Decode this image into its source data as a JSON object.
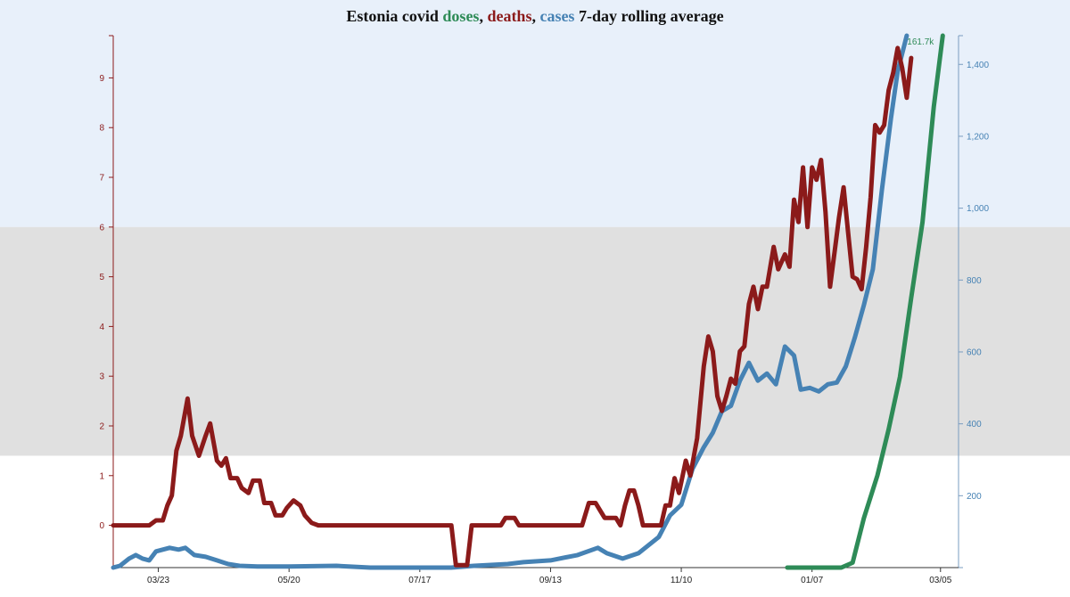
{
  "title": {
    "prefix": "Estonia covid ",
    "doses": "doses",
    "sep1": ", ",
    "deaths": "deaths",
    "sep2": ", ",
    "cases": "cases",
    "suffix": " 7-day rolling average"
  },
  "colors": {
    "doses": "#2e8b57",
    "deaths": "#8b1a1a",
    "cases": "#4682b4",
    "band_top": "#e8f0fa",
    "band_mid": "#e0e0e0",
    "axis_left": "#8b1a1a",
    "axis_right": "#4682b4",
    "axis_bottom": "#333333"
  },
  "chart_data": {
    "type": "line",
    "title": "Estonia covid doses, deaths, cases 7-day rolling average",
    "x_axis": {
      "type": "date",
      "range": [
        "2020-03-03",
        "2021-03-13"
      ],
      "ticks": [
        {
          "date": "2020-03-23",
          "label": "03/23"
        },
        {
          "date": "2020-05-20",
          "label": "05/20"
        },
        {
          "date": "2020-07-17",
          "label": "07/17"
        },
        {
          "date": "2020-09-13",
          "label": "09/13"
        },
        {
          "date": "2020-11-10",
          "label": "11/10"
        },
        {
          "date": "2021-01-07",
          "label": "01/07"
        },
        {
          "date": "2021-03-05",
          "label": "03/05"
        }
      ]
    },
    "y_left": {
      "series": "deaths",
      "range": [
        -0.85,
        9.85
      ],
      "ticks": [
        0,
        1,
        2,
        3,
        4,
        5,
        6,
        7,
        8,
        9
      ]
    },
    "y_right": {
      "series": "cases",
      "range": [
        0,
        1480
      ],
      "ticks": [
        200,
        400,
        600,
        800,
        1000,
        1200,
        1400
      ],
      "tick_labels": [
        "200",
        "400",
        "600",
        "800",
        "1,000",
        "1,200",
        "1,400"
      ]
    },
    "doses_scale": {
      "range": [
        0,
        161700
      ],
      "annotation": "161.7k"
    },
    "background_bands": [
      {
        "from": 6,
        "to": 9.85,
        "axis": "left",
        "color": "band_top"
      },
      {
        "from": 1.4,
        "to": 6,
        "axis": "left",
        "color": "band_mid"
      }
    ],
    "series": [
      {
        "name": "deaths",
        "axis": "left",
        "points": [
          [
            "2020-03-03",
            0
          ],
          [
            "2020-03-19",
            0
          ],
          [
            "2020-03-22",
            0.1
          ],
          [
            "2020-03-25",
            0.1
          ],
          [
            "2020-03-27",
            0.4
          ],
          [
            "2020-03-29",
            0.6
          ],
          [
            "2020-03-31",
            1.5
          ],
          [
            "2020-04-02",
            1.8
          ],
          [
            "2020-04-05",
            2.55
          ],
          [
            "2020-04-07",
            1.8
          ],
          [
            "2020-04-10",
            1.4
          ],
          [
            "2020-04-13",
            1.8
          ],
          [
            "2020-04-15",
            2.05
          ],
          [
            "2020-04-18",
            1.3
          ],
          [
            "2020-04-20",
            1.2
          ],
          [
            "2020-04-22",
            1.35
          ],
          [
            "2020-04-24",
            0.95
          ],
          [
            "2020-04-27",
            0.95
          ],
          [
            "2020-04-29",
            0.75
          ],
          [
            "2020-05-02",
            0.65
          ],
          [
            "2020-05-04",
            0.9
          ],
          [
            "2020-05-07",
            0.9
          ],
          [
            "2020-05-09",
            0.45
          ],
          [
            "2020-05-12",
            0.45
          ],
          [
            "2020-05-14",
            0.2
          ],
          [
            "2020-05-17",
            0.2
          ],
          [
            "2020-05-19",
            0.35
          ],
          [
            "2020-05-22",
            0.5
          ],
          [
            "2020-05-25",
            0.4
          ],
          [
            "2020-05-27",
            0.2
          ],
          [
            "2020-05-30",
            0.05
          ],
          [
            "2020-06-02",
            0
          ],
          [
            "2020-07-31",
            0
          ],
          [
            "2020-08-02",
            -0.8
          ],
          [
            "2020-08-07",
            -0.8
          ],
          [
            "2020-08-09",
            0
          ],
          [
            "2020-08-22",
            0
          ],
          [
            "2020-08-24",
            0.15
          ],
          [
            "2020-08-28",
            0.15
          ],
          [
            "2020-08-30",
            0
          ],
          [
            "2020-09-27",
            0
          ],
          [
            "2020-09-30",
            0.45
          ],
          [
            "2020-10-03",
            0.45
          ],
          [
            "2020-10-05",
            0.3
          ],
          [
            "2020-10-07",
            0.15
          ],
          [
            "2020-10-12",
            0.15
          ],
          [
            "2020-10-14",
            0
          ],
          [
            "2020-10-16",
            0.4
          ],
          [
            "2020-10-18",
            0.7
          ],
          [
            "2020-10-20",
            0.7
          ],
          [
            "2020-10-22",
            0.4
          ],
          [
            "2020-10-24",
            0
          ],
          [
            "2020-11-01",
            0
          ],
          [
            "2020-11-03",
            0.4
          ],
          [
            "2020-11-05",
            0.4
          ],
          [
            "2020-11-07",
            0.95
          ],
          [
            "2020-11-09",
            0.65
          ],
          [
            "2020-11-12",
            1.3
          ],
          [
            "2020-11-14",
            1.0
          ],
          [
            "2020-11-17",
            1.75
          ],
          [
            "2020-11-20",
            3.2
          ],
          [
            "2020-11-22",
            3.8
          ],
          [
            "2020-11-24",
            3.5
          ],
          [
            "2020-11-26",
            2.6
          ],
          [
            "2020-11-28",
            2.3
          ],
          [
            "2020-11-30",
            2.6
          ],
          [
            "2020-12-02",
            2.95
          ],
          [
            "2020-12-04",
            2.85
          ],
          [
            "2020-12-06",
            3.5
          ],
          [
            "2020-12-08",
            3.6
          ],
          [
            "2020-12-10",
            4.45
          ],
          [
            "2020-12-12",
            4.8
          ],
          [
            "2020-12-14",
            4.35
          ],
          [
            "2020-12-16",
            4.8
          ],
          [
            "2020-12-18",
            4.8
          ],
          [
            "2020-12-21",
            5.6
          ],
          [
            "2020-12-23",
            5.15
          ],
          [
            "2020-12-26",
            5.45
          ],
          [
            "2020-12-28",
            5.2
          ],
          [
            "2020-12-30",
            6.55
          ],
          [
            "2021-01-01",
            6.1
          ],
          [
            "2021-01-03",
            7.2
          ],
          [
            "2021-01-05",
            6.0
          ],
          [
            "2021-01-07",
            7.2
          ],
          [
            "2021-01-09",
            6.95
          ],
          [
            "2021-01-11",
            7.35
          ],
          [
            "2021-01-13",
            6.3
          ],
          [
            "2021-01-15",
            4.8
          ],
          [
            "2021-01-17",
            5.5
          ],
          [
            "2021-01-19",
            6.2
          ],
          [
            "2021-01-21",
            6.8
          ],
          [
            "2021-01-23",
            5.9
          ],
          [
            "2021-01-25",
            5.0
          ],
          [
            "2021-01-27",
            4.95
          ],
          [
            "2021-01-29",
            4.75
          ],
          [
            "2021-01-31",
            5.6
          ],
          [
            "2021-02-02",
            6.6
          ],
          [
            "2021-02-04",
            8.05
          ],
          [
            "2021-02-06",
            7.9
          ],
          [
            "2021-02-08",
            8.05
          ],
          [
            "2021-02-10",
            8.75
          ],
          [
            "2021-02-12",
            9.1
          ],
          [
            "2021-02-14",
            9.6
          ],
          [
            "2021-02-16",
            9.2
          ],
          [
            "2021-02-18",
            8.6
          ],
          [
            "2021-02-20",
            9.4
          ]
        ]
      },
      {
        "name": "cases",
        "axis": "right",
        "points": [
          [
            "2020-03-03",
            0
          ],
          [
            "2020-03-06",
            5
          ],
          [
            "2020-03-10",
            25
          ],
          [
            "2020-03-13",
            35
          ],
          [
            "2020-03-16",
            25
          ],
          [
            "2020-03-19",
            20
          ],
          [
            "2020-03-22",
            45
          ],
          [
            "2020-03-25",
            50
          ],
          [
            "2020-03-28",
            55
          ],
          [
            "2020-04-01",
            50
          ],
          [
            "2020-04-04",
            55
          ],
          [
            "2020-04-08",
            35
          ],
          [
            "2020-04-13",
            30
          ],
          [
            "2020-04-18",
            20
          ],
          [
            "2020-04-23",
            10
          ],
          [
            "2020-04-28",
            5
          ],
          [
            "2020-05-06",
            3
          ],
          [
            "2020-05-20",
            3
          ],
          [
            "2020-06-10",
            5
          ],
          [
            "2020-06-25",
            0
          ],
          [
            "2020-07-17",
            0
          ],
          [
            "2020-07-31",
            0
          ],
          [
            "2020-08-10",
            5
          ],
          [
            "2020-08-25",
            10
          ],
          [
            "2020-09-01",
            15
          ],
          [
            "2020-09-13",
            20
          ],
          [
            "2020-09-25",
            35
          ],
          [
            "2020-10-04",
            55
          ],
          [
            "2020-10-08",
            40
          ],
          [
            "2020-10-15",
            25
          ],
          [
            "2020-10-22",
            40
          ],
          [
            "2020-10-31",
            85
          ],
          [
            "2020-11-05",
            145
          ],
          [
            "2020-11-10",
            175
          ],
          [
            "2020-11-15",
            275
          ],
          [
            "2020-11-20",
            335
          ],
          [
            "2020-11-24",
            375
          ],
          [
            "2020-11-28",
            435
          ],
          [
            "2020-12-02",
            450
          ],
          [
            "2020-12-06",
            520
          ],
          [
            "2020-12-10",
            570
          ],
          [
            "2020-12-14",
            520
          ],
          [
            "2020-12-18",
            540
          ],
          [
            "2020-12-22",
            510
          ],
          [
            "2020-12-26",
            615
          ],
          [
            "2020-12-30",
            590
          ],
          [
            "2021-01-02",
            495
          ],
          [
            "2021-01-06",
            500
          ],
          [
            "2021-01-10",
            490
          ],
          [
            "2021-01-14",
            510
          ],
          [
            "2021-01-18",
            515
          ],
          [
            "2021-01-22",
            560
          ],
          [
            "2021-01-26",
            640
          ],
          [
            "2021-01-30",
            730
          ],
          [
            "2021-02-03",
            830
          ],
          [
            "2021-02-07",
            1050
          ],
          [
            "2021-02-11",
            1250
          ],
          [
            "2021-02-14",
            1380
          ],
          [
            "2021-02-18",
            1480
          ]
        ]
      },
      {
        "name": "doses",
        "axis": "doses_scale",
        "points": [
          [
            "2020-12-27",
            0
          ],
          [
            "2021-01-20",
            0
          ],
          [
            "2021-01-25",
            1500
          ],
          [
            "2021-01-30",
            15000
          ],
          [
            "2021-02-05",
            28000
          ],
          [
            "2021-02-10",
            42000
          ],
          [
            "2021-02-15",
            58000
          ],
          [
            "2021-02-20",
            82000
          ],
          [
            "2021-02-25",
            105000
          ],
          [
            "2021-03-02",
            140000
          ],
          [
            "2021-03-06",
            161700
          ]
        ]
      }
    ]
  }
}
